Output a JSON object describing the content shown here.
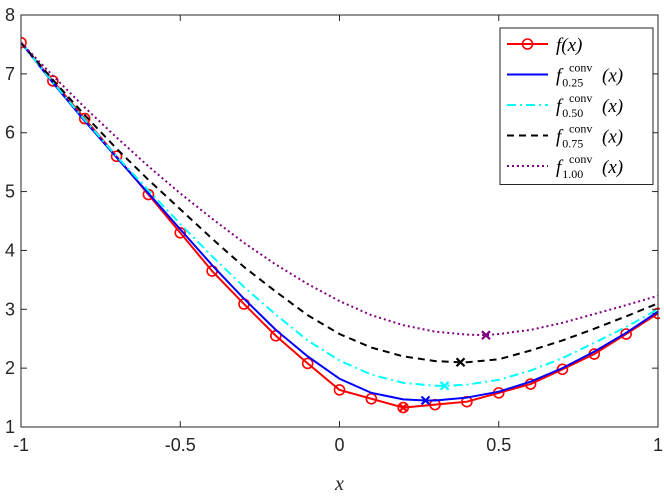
{
  "chart_data": {
    "type": "line",
    "title": "",
    "xlabel": "x",
    "ylabel": "",
    "xlim": [
      -1,
      1
    ],
    "ylim": [
      1,
      8
    ],
    "xticks": [
      -1,
      -0.5,
      0,
      0.5,
      1
    ],
    "xtick_labels": [
      "-1",
      "-0.5",
      "0",
      "0.5",
      "1"
    ],
    "yticks": [
      1,
      2,
      3,
      4,
      5,
      6,
      7,
      8
    ],
    "ytick_labels": [
      "1",
      "2",
      "3",
      "4",
      "5",
      "6",
      "7",
      "8"
    ],
    "legend_position": "top-right",
    "series": [
      {
        "name": "f(x)",
        "legend": {
          "main": "f(x)",
          "sup": "",
          "sub": ""
        },
        "color": "#ff0000",
        "dash": "",
        "marker": "circle",
        "x": [
          -1,
          -0.9,
          -0.8,
          -0.7,
          -0.6,
          -0.5,
          -0.4,
          -0.3,
          -0.2,
          -0.1,
          0,
          0.1,
          0.2,
          0.3,
          0.4,
          0.5,
          0.6,
          0.7,
          0.8,
          0.9,
          1
        ],
        "y": [
          7.53,
          6.88,
          6.24,
          5.6,
          4.95,
          4.3,
          3.65,
          3.09,
          2.55,
          2.08,
          1.63,
          1.48,
          1.33,
          1.38,
          1.43,
          1.58,
          1.73,
          1.98,
          2.24,
          2.58,
          2.93
        ],
        "min": {
          "x": 0.2,
          "y": 1.33
        }
      },
      {
        "name": "f_0.25^conv(x)",
        "legend": {
          "main": "f",
          "sup": "conv",
          "sub": "0.25",
          "arg": "(x)"
        },
        "color": "#0000ff",
        "dash": "",
        "marker": "none",
        "x": [
          -1,
          -0.9,
          -0.8,
          -0.7,
          -0.6,
          -0.5,
          -0.4,
          -0.3,
          -0.2,
          -0.1,
          0,
          0.1,
          0.2,
          0.27,
          0.3,
          0.4,
          0.5,
          0.6,
          0.7,
          0.8,
          0.9,
          1
        ],
        "y": [
          7.53,
          6.85,
          6.2,
          5.58,
          4.97,
          4.36,
          3.75,
          3.18,
          2.65,
          2.2,
          1.82,
          1.58,
          1.47,
          1.45,
          1.45,
          1.5,
          1.6,
          1.77,
          2,
          2.28,
          2.6,
          2.96
        ],
        "min": {
          "x": 0.27,
          "y": 1.45
        }
      },
      {
        "name": "f_0.50^conv(x)",
        "legend": {
          "main": "f",
          "sup": "conv",
          "sub": "0.50",
          "arg": "(x)"
        },
        "color": "#00ffff",
        "dash": "9,4,2,4",
        "marker": "none",
        "x": [
          -1,
          -0.9,
          -0.8,
          -0.7,
          -0.6,
          -0.5,
          -0.4,
          -0.3,
          -0.2,
          -0.1,
          0,
          0.1,
          0.2,
          0.3,
          0.33,
          0.4,
          0.5,
          0.6,
          0.7,
          0.8,
          0.9,
          1
        ],
        "y": [
          7.53,
          6.86,
          6.22,
          5.6,
          5.02,
          4.45,
          3.9,
          3.38,
          2.91,
          2.47,
          2.13,
          1.89,
          1.75,
          1.7,
          1.7,
          1.72,
          1.8,
          1.96,
          2.17,
          2.43,
          2.7,
          3
        ],
        "min": {
          "x": 0.33,
          "y": 1.7
        }
      },
      {
        "name": "f_0.75^conv(x)",
        "legend": {
          "main": "f",
          "sup": "conv",
          "sub": "0.75",
          "arg": "(x)"
        },
        "color": "#000000",
        "dash": "7,5",
        "marker": "none",
        "x": [
          -1,
          -0.9,
          -0.8,
          -0.7,
          -0.6,
          -0.5,
          -0.4,
          -0.3,
          -0.2,
          -0.1,
          0,
          0.1,
          0.2,
          0.3,
          0.38,
          0.4,
          0.5,
          0.6,
          0.7,
          0.8,
          0.9,
          1
        ],
        "y": [
          7.53,
          6.9,
          6.3,
          5.73,
          5.2,
          4.7,
          4.2,
          3.72,
          3.3,
          2.9,
          2.58,
          2.35,
          2.2,
          2.12,
          2.1,
          2.1,
          2.15,
          2.3,
          2.47,
          2.67,
          2.88,
          3.1
        ],
        "min": {
          "x": 0.38,
          "y": 2.1
        }
      },
      {
        "name": "f_1.00^conv(x)",
        "legend": {
          "main": "f",
          "sup": "conv",
          "sub": "1.00",
          "arg": "(x)"
        },
        "color": "#800080",
        "dash": "2,3",
        "marker": "none",
        "x": [
          -1,
          -0.9,
          -0.8,
          -0.7,
          -0.6,
          -0.5,
          -0.4,
          -0.3,
          -0.2,
          -0.1,
          0,
          0.1,
          0.2,
          0.3,
          0.4,
          0.46,
          0.5,
          0.6,
          0.7,
          0.8,
          0.9,
          1
        ],
        "y": [
          7.53,
          6.97,
          6.43,
          5.92,
          5.43,
          4.97,
          4.54,
          4.13,
          3.76,
          3.43,
          3.14,
          2.9,
          2.73,
          2.62,
          2.57,
          2.56,
          2.58,
          2.65,
          2.77,
          2.92,
          3.07,
          3.23
        ],
        "min": {
          "x": 0.46,
          "y": 2.56
        }
      }
    ]
  }
}
